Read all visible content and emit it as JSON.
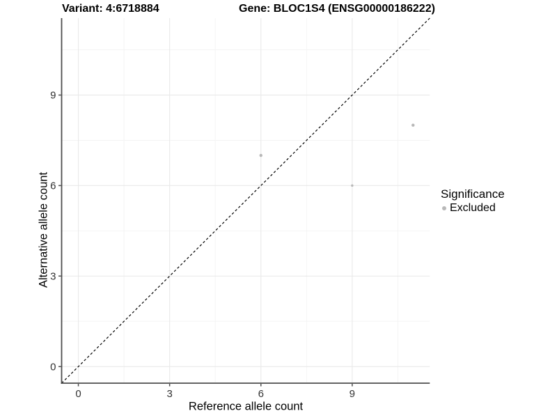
{
  "titles": {
    "variant": "Variant: 4:6718884",
    "gene": "Gene: BLOC1S4 (ENSG00000186222)"
  },
  "axes": {
    "x_label": "Reference allele count",
    "y_label": "Alternative allele count"
  },
  "legend": {
    "title": "Significance",
    "items": [
      {
        "label": "Excluded",
        "color": "#b8b8b8"
      }
    ]
  },
  "colors": {
    "background": "#ffffff",
    "axis_line": "#4d4d4d",
    "tick_label": "#333333",
    "grid_major": "#e9e9e9",
    "grid_minor": "#f3f3f3",
    "identity_line": "#000000",
    "excluded_point": "#b8b8b8"
  },
  "chart_data": {
    "type": "scatter",
    "title": "Variant: 4:6718884 | Gene: BLOC1S4 (ENSG00000186222)",
    "xlabel": "Reference allele count",
    "ylabel": "Alternative allele count",
    "xlim": [
      -0.55,
      11.55
    ],
    "ylim": [
      -0.55,
      11.55
    ],
    "x_ticks": [
      0,
      3,
      6,
      9
    ],
    "y_ticks": [
      0,
      3,
      6,
      9
    ],
    "x_minor_ticks": [
      1.5,
      4.5,
      7.5,
      10.5
    ],
    "y_minor_ticks": [
      1.5,
      4.5,
      7.5,
      10.5
    ],
    "grid": true,
    "legend_position": "right",
    "reference_line": {
      "kind": "identity",
      "style": "dashed",
      "color": "#000000"
    },
    "series": [
      {
        "name": "Excluded",
        "color": "#b8b8b8",
        "points": [
          {
            "x": 6,
            "y": 7,
            "r": 2.2
          },
          {
            "x": 9,
            "y": 6,
            "r": 1.7
          },
          {
            "x": 11,
            "y": 8,
            "r": 2.2
          }
        ]
      }
    ]
  }
}
